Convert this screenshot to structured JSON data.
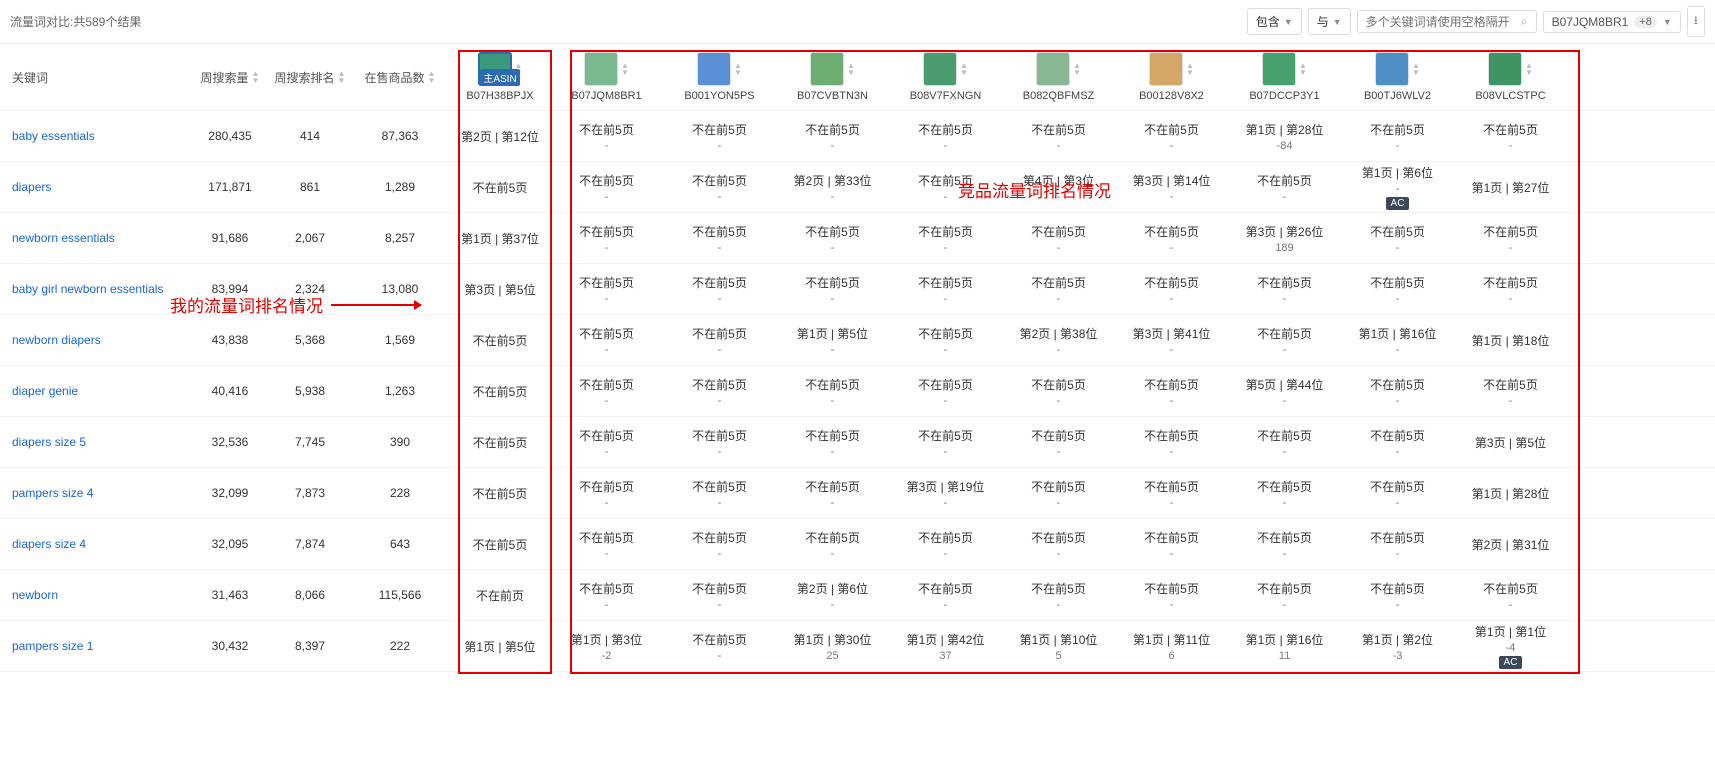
{
  "title": "流量词对比:共589个结果",
  "filter1": "包含",
  "filter2": "与",
  "search_placeholder": "多个关键词请使用空格隔开",
  "chip_asin": "B07JQM8BR1",
  "chip_plus": "+8",
  "headers": {
    "kw": "关键词",
    "vol": "周搜索量",
    "rank": "周搜索排名",
    "prod": "在售商品数"
  },
  "main_asin_label": "主ASIN",
  "main_asin": {
    "code": "B07H38BPJX",
    "color": "#3a9b7c"
  },
  "comp_asins": [
    {
      "code": "B07JQM8BR1",
      "color": "#7ab890"
    },
    {
      "code": "B001YON5PS",
      "color": "#5b8fd6"
    },
    {
      "code": "B07CVBTN3N",
      "color": "#6fae72"
    },
    {
      "code": "B08V7FXNGN",
      "color": "#4a9c6e"
    },
    {
      "code": "B082QBFMSZ",
      "color": "#88b893"
    },
    {
      "code": "B00128V8X2",
      "color": "#d4a766"
    },
    {
      "code": "B07DCCP3Y1",
      "color": "#46a16f"
    },
    {
      "code": "B00TJ6WLV2",
      "color": "#4f8fc8"
    },
    {
      "code": "B08VLCSTPC",
      "color": "#3e9462"
    }
  ],
  "rows": [
    {
      "kw": "baby essentials",
      "vol": "280,435",
      "rank": "414",
      "prod": "87,363",
      "main": "第2页 | 第12位",
      "comp": [
        {
          "t": "不在前5页",
          "s": "-"
        },
        {
          "t": "不在前5页",
          "s": "-"
        },
        {
          "t": "不在前5页",
          "s": "-"
        },
        {
          "t": "不在前5页",
          "s": "-"
        },
        {
          "t": "不在前5页",
          "s": "-"
        },
        {
          "t": "不在前5页",
          "s": "-"
        },
        {
          "t": "第1页 | 第28位",
          "s": "-84"
        },
        {
          "t": "不在前5页",
          "s": "-"
        },
        {
          "t": "不在前5页",
          "s": "-"
        }
      ]
    },
    {
      "kw": "diapers",
      "vol": "171,871",
      "rank": "861",
      "prod": "1,289",
      "main": "不在前5页",
      "comp": [
        {
          "t": "不在前5页",
          "s": "-"
        },
        {
          "t": "不在前5页",
          "s": "-"
        },
        {
          "t": "第2页 | 第33位",
          "s": "-"
        },
        {
          "t": "不在前5页",
          "s": "-"
        },
        {
          "t": "第4页 | 第3位",
          "s": "-"
        },
        {
          "t": "第3页 | 第14位",
          "s": "-"
        },
        {
          "t": "不在前5页",
          "s": "-"
        },
        {
          "t": "第1页 | 第6位",
          "s": "-",
          "ac": true
        },
        {
          "t": "第1页 | 第27位",
          "s": ""
        }
      ]
    },
    {
      "kw": "newborn essentials",
      "vol": "91,686",
      "rank": "2,067",
      "prod": "8,257",
      "main": "第1页 | 第37位",
      "comp": [
        {
          "t": "不在前5页",
          "s": "-"
        },
        {
          "t": "不在前5页",
          "s": "-"
        },
        {
          "t": "不在前5页",
          "s": "-"
        },
        {
          "t": "不在前5页",
          "s": "-"
        },
        {
          "t": "不在前5页",
          "s": "-"
        },
        {
          "t": "不在前5页",
          "s": "-"
        },
        {
          "t": "第3页 | 第26位",
          "s": "189"
        },
        {
          "t": "不在前5页",
          "s": "-"
        },
        {
          "t": "不在前5页",
          "s": "-"
        }
      ]
    },
    {
      "kw": "baby girl newborn essentials",
      "vol": "83,994",
      "rank": "2,324",
      "prod": "13,080",
      "main": "第3页 | 第5位",
      "comp": [
        {
          "t": "不在前5页",
          "s": "-"
        },
        {
          "t": "不在前5页",
          "s": "-"
        },
        {
          "t": "不在前5页",
          "s": "-"
        },
        {
          "t": "不在前5页",
          "s": "-"
        },
        {
          "t": "不在前5页",
          "s": "-"
        },
        {
          "t": "不在前5页",
          "s": "-"
        },
        {
          "t": "不在前5页",
          "s": "-"
        },
        {
          "t": "不在前5页",
          "s": "-"
        },
        {
          "t": "不在前5页",
          "s": "-"
        }
      ]
    },
    {
      "kw": "newborn diapers",
      "vol": "43,838",
      "rank": "5,368",
      "prod": "1,569",
      "main": "不在前5页",
      "comp": [
        {
          "t": "不在前5页",
          "s": "-"
        },
        {
          "t": "不在前5页",
          "s": "-"
        },
        {
          "t": "第1页 | 第5位",
          "s": "-"
        },
        {
          "t": "不在前5页",
          "s": "-"
        },
        {
          "t": "第2页 | 第38位",
          "s": "-"
        },
        {
          "t": "第3页 | 第41位",
          "s": "-"
        },
        {
          "t": "不在前5页",
          "s": "-"
        },
        {
          "t": "第1页 | 第16位",
          "s": "-"
        },
        {
          "t": "第1页 | 第18位",
          "s": ""
        }
      ]
    },
    {
      "kw": "diaper genie",
      "vol": "40,416",
      "rank": "5,938",
      "prod": "1,263",
      "main": "不在前5页",
      "comp": [
        {
          "t": "不在前5页",
          "s": "-"
        },
        {
          "t": "不在前5页",
          "s": "-"
        },
        {
          "t": "不在前5页",
          "s": "-"
        },
        {
          "t": "不在前5页",
          "s": "-"
        },
        {
          "t": "不在前5页",
          "s": "-"
        },
        {
          "t": "不在前5页",
          "s": "-"
        },
        {
          "t": "第5页 | 第44位",
          "s": "-"
        },
        {
          "t": "不在前5页",
          "s": "-"
        },
        {
          "t": "不在前5页",
          "s": "-"
        }
      ]
    },
    {
      "kw": "diapers size 5",
      "vol": "32,536",
      "rank": "7,745",
      "prod": "390",
      "main": "不在前5页",
      "comp": [
        {
          "t": "不在前5页",
          "s": "-"
        },
        {
          "t": "不在前5页",
          "s": "-"
        },
        {
          "t": "不在前5页",
          "s": "-"
        },
        {
          "t": "不在前5页",
          "s": "-"
        },
        {
          "t": "不在前5页",
          "s": "-"
        },
        {
          "t": "不在前5页",
          "s": "-"
        },
        {
          "t": "不在前5页",
          "s": "-"
        },
        {
          "t": "不在前5页",
          "s": "-"
        },
        {
          "t": "第3页 | 第5位",
          "s": ""
        }
      ]
    },
    {
      "kw": "pampers size 4",
      "vol": "32,099",
      "rank": "7,873",
      "prod": "228",
      "main": "不在前5页",
      "comp": [
        {
          "t": "不在前5页",
          "s": "-"
        },
        {
          "t": "不在前5页",
          "s": "-"
        },
        {
          "t": "不在前5页",
          "s": "-"
        },
        {
          "t": "第3页 | 第19位",
          "s": "-"
        },
        {
          "t": "不在前5页",
          "s": "-"
        },
        {
          "t": "不在前5页",
          "s": "-"
        },
        {
          "t": "不在前5页",
          "s": "-"
        },
        {
          "t": "不在前5页",
          "s": "-"
        },
        {
          "t": "第1页 | 第28位",
          "s": ""
        }
      ]
    },
    {
      "kw": "diapers size 4",
      "vol": "32,095",
      "rank": "7,874",
      "prod": "643",
      "main": "不在前5页",
      "comp": [
        {
          "t": "不在前5页",
          "s": "-"
        },
        {
          "t": "不在前5页",
          "s": "-"
        },
        {
          "t": "不在前5页",
          "s": "-"
        },
        {
          "t": "不在前5页",
          "s": "-"
        },
        {
          "t": "不在前5页",
          "s": "-"
        },
        {
          "t": "不在前5页",
          "s": "-"
        },
        {
          "t": "不在前5页",
          "s": "-"
        },
        {
          "t": "不在前5页",
          "s": "-"
        },
        {
          "t": "第2页 | 第31位",
          "s": ""
        }
      ]
    },
    {
      "kw": "newborn",
      "vol": "31,463",
      "rank": "8,066",
      "prod": "115,566",
      "main": "不在前页",
      "comp": [
        {
          "t": "不在前5页",
          "s": "-"
        },
        {
          "t": "不在前5页",
          "s": "-"
        },
        {
          "t": "第2页 | 第6位",
          "s": "-"
        },
        {
          "t": "不在前5页",
          "s": "-"
        },
        {
          "t": "不在前5页",
          "s": "-"
        },
        {
          "t": "不在前5页",
          "s": "-"
        },
        {
          "t": "不在前5页",
          "s": "-"
        },
        {
          "t": "不在前5页",
          "s": "-"
        },
        {
          "t": "不在前5页",
          "s": "-"
        }
      ]
    },
    {
      "kw": "pampers size 1",
      "vol": "30,432",
      "rank": "8,397",
      "prod": "222",
      "main": "第1页 | 第5位",
      "comp": [
        {
          "t": "第1页 | 第3位",
          "s": "-2"
        },
        {
          "t": "不在前5页",
          "s": "-"
        },
        {
          "t": "第1页 | 第30位",
          "s": "25"
        },
        {
          "t": "第1页 | 第42位",
          "s": "37"
        },
        {
          "t": "第1页 | 第10位",
          "s": "5"
        },
        {
          "t": "第1页 | 第11位",
          "s": "6"
        },
        {
          "t": "第1页 | 第16位",
          "s": "11"
        },
        {
          "t": "第1页 | 第2位",
          "s": "-3"
        },
        {
          "t": "第1页 | 第1位",
          "s": "-4",
          "ac": true
        }
      ]
    }
  ],
  "anno_left": "我的流量词排名情况",
  "anno_right": "竞品流量词排名情况",
  "ac_label": "AC"
}
